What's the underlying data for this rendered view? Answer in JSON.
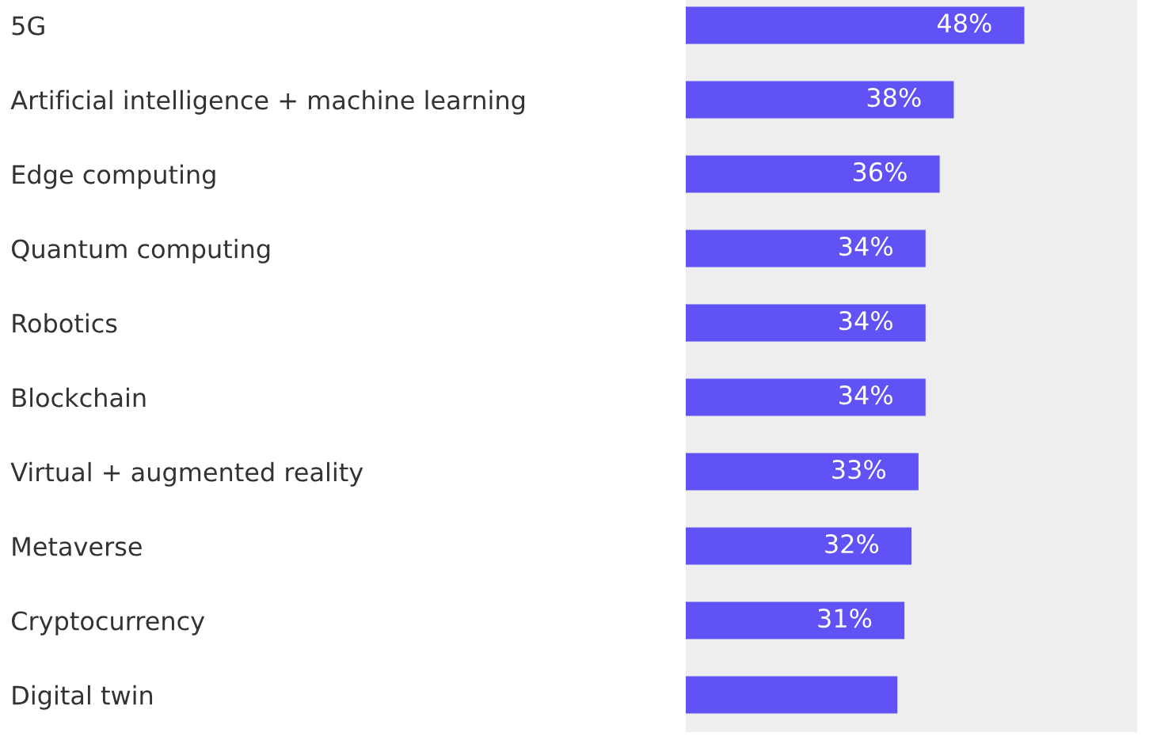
{
  "chart_data": {
    "type": "bar",
    "orientation": "horizontal",
    "categories": [
      "5G",
      "Artificial intelligence + machine learning",
      "Edge computing",
      "Quantum computing",
      "Robotics",
      "Blockchain",
      "Virtual + augmented reality",
      "Metaverse",
      "Cryptocurrency",
      "Digital twin"
    ],
    "values": [
      48,
      38,
      36,
      34,
      34,
      34,
      33,
      32,
      31,
      30
    ],
    "value_labels": [
      "48%",
      "38%",
      "36%",
      "34%",
      "34%",
      "34%",
      "33%",
      "32%",
      "31%",
      null
    ],
    "color": "#6152f5",
    "tick_labels": "y",
    "grid": false,
    "legend": false
  }
}
